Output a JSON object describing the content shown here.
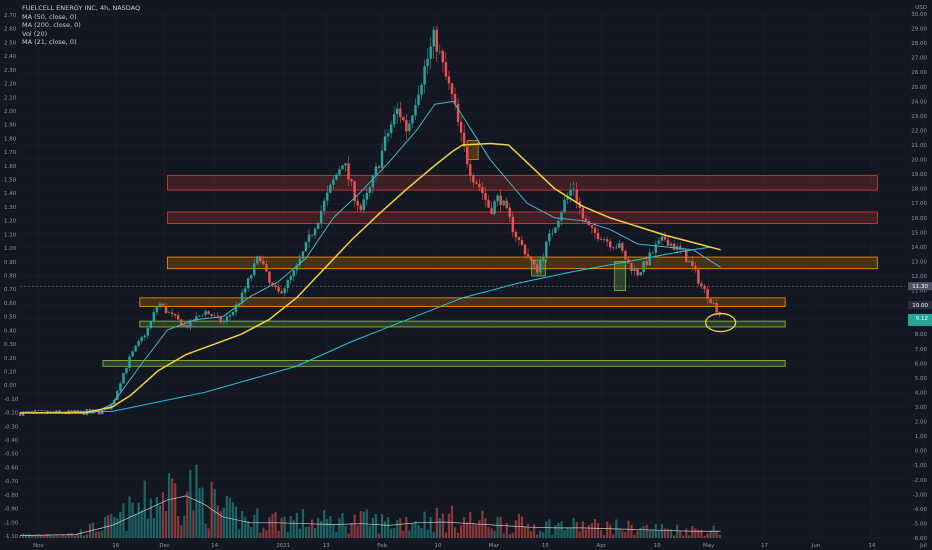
{
  "legend": {
    "title": "FUELCELL ENERGY INC, 4h, NASDAQ",
    "lines": [
      "MA (50, close, 0)",
      "MA (200, close, 0)",
      "Vol (20)",
      "MA (21, close, 0)"
    ]
  },
  "colors": {
    "background": "#131722",
    "grid": "#1f2330",
    "up": "#26a69a",
    "down": "#ef5350",
    "ma50": "#f5d13b",
    "ma200": "#26c6da",
    "ma21": "#4fb3c8",
    "vol_ma": "#c8c8c8",
    "red_zone": "#e53935",
    "orange_zone": "#ff9800",
    "green_zone": "#8bc34a",
    "annotation": "#f5d13b",
    "current_price_tag": "#26a69a"
  },
  "chart_data": {
    "type": "candlestick",
    "symbol": "FUELCELL ENERGY INC",
    "interval": "4h",
    "exchange": "NASDAQ",
    "currency_label": "USD",
    "x_ticks": [
      "Nov",
      "16",
      "Dec",
      "14",
      "2021",
      "13",
      "Feb",
      "10",
      "Mar",
      "15",
      "Apr",
      "19",
      "May",
      "17",
      "Jun",
      "14",
      "Jul"
    ],
    "right_axis": {
      "unit": "USD",
      "ticks": [
        "30.00",
        "29.00",
        "28.00",
        "27.00",
        "26.00",
        "25.00",
        "24.00",
        "23.00",
        "22.00",
        "21.00",
        "20.00",
        "19.00",
        "18.00",
        "17.00",
        "16.00",
        "15.00",
        "14.00",
        "13.00",
        "12.00",
        "11.00",
        "10.00",
        "9.00",
        "8.00",
        "7.00",
        "6.00",
        "5.00",
        "4.00",
        "3.00",
        "2.00",
        "1.00",
        "0.00",
        "-1.00",
        "-2.00",
        "-3.00",
        "-4.00",
        "-5.00",
        "-6.00"
      ],
      "range": [
        -6,
        30
      ],
      "current_price_labels": [
        "11.30",
        "10.00",
        "9.12"
      ]
    },
    "left_axis": {
      "ticks": [
        "2.70",
        "2.60",
        "2.50",
        "2.40",
        "2.30",
        "2.20",
        "2.10",
        "2.00",
        "1.90",
        "1.80",
        "1.70",
        "1.60",
        "1.50",
        "1.40",
        "1.30",
        "1.20",
        "1.10",
        "1.00",
        "0.90",
        "0.80",
        "0.70",
        "0.60",
        "0.50",
        "0.40",
        "0.30",
        "0.20",
        "0.10",
        "0.00",
        "-0.10",
        "-0.20",
        "-0.30",
        "-0.40",
        "-0.50",
        "-0.60",
        "-0.70",
        "-0.80",
        "-0.90",
        "-1.00",
        "-1.10"
      ],
      "range": [
        -1.1,
        2.7
      ]
    },
    "price_path": [
      [
        0,
        2.6
      ],
      [
        6,
        2.6
      ],
      [
        9,
        2.7
      ],
      [
        10,
        3.2
      ],
      [
        11,
        5.0
      ],
      [
        12,
        6.5
      ],
      [
        13,
        7.5
      ],
      [
        14,
        8.5
      ],
      [
        15,
        10.2
      ],
      [
        16,
        9.5
      ],
      [
        17,
        9.0
      ],
      [
        18,
        8.5
      ],
      [
        19,
        9.0
      ],
      [
        20,
        9.6
      ],
      [
        21,
        9.2
      ],
      [
        22,
        8.8
      ],
      [
        23,
        9.5
      ],
      [
        24,
        10.5
      ],
      [
        25,
        12.0
      ],
      [
        26,
        13.5
      ],
      [
        27,
        11.5
      ],
      [
        28,
        10.8
      ],
      [
        29,
        11.5
      ],
      [
        30,
        12.5
      ],
      [
        31,
        14.0
      ],
      [
        32,
        15.5
      ],
      [
        33,
        17.0
      ],
      [
        34,
        18.5
      ],
      [
        35,
        20.0
      ],
      [
        36,
        18.0
      ],
      [
        37,
        16.5
      ],
      [
        38,
        18.0
      ],
      [
        39,
        20.0
      ],
      [
        40,
        22.0
      ],
      [
        41,
        23.5
      ],
      [
        42,
        22.0
      ],
      [
        43,
        24.5
      ],
      [
        44,
        26.5
      ],
      [
        45,
        28.5
      ],
      [
        46,
        26.0
      ],
      [
        47,
        24.0
      ],
      [
        48,
        21.0
      ],
      [
        49,
        19.0
      ],
      [
        50,
        18.0
      ],
      [
        51,
        16.5
      ],
      [
        52,
        17.5
      ],
      [
        53,
        16.0
      ],
      [
        54,
        14.5
      ],
      [
        55,
        13.5
      ],
      [
        56,
        12.3
      ],
      [
        57,
        14.0
      ],
      [
        58,
        15.5
      ],
      [
        59,
        17.0
      ],
      [
        60,
        18.2
      ],
      [
        61,
        16.0
      ],
      [
        62,
        15.0
      ],
      [
        63,
        14.8
      ],
      [
        64,
        14.3
      ],
      [
        65,
        14.0
      ],
      [
        66,
        12.8
      ],
      [
        67,
        12.2
      ],
      [
        68,
        13.0
      ],
      [
        69,
        14.0
      ],
      [
        70,
        14.6
      ],
      [
        71,
        14.0
      ],
      [
        72,
        13.5
      ],
      [
        73,
        12.5
      ],
      [
        74,
        11.2
      ],
      [
        75,
        10.3
      ],
      [
        76,
        9.3
      ]
    ],
    "ma50_path": [
      [
        0,
        2.6
      ],
      [
        7,
        2.6
      ],
      [
        10,
        3.0
      ],
      [
        12,
        3.8
      ],
      [
        15,
        5.5
      ],
      [
        18,
        6.6
      ],
      [
        21,
        7.3
      ],
      [
        24,
        8.0
      ],
      [
        27,
        9.0
      ],
      [
        30,
        10.5
      ],
      [
        33,
        12.5
      ],
      [
        36,
        14.5
      ],
      [
        39,
        16.3
      ],
      [
        42,
        18.0
      ],
      [
        45,
        19.6
      ],
      [
        47,
        20.6
      ],
      [
        48,
        21.0
      ],
      [
        51,
        21.1
      ],
      [
        53,
        21.0
      ],
      [
        55,
        19.8
      ],
      [
        58,
        18.0
      ],
      [
        61,
        16.8
      ],
      [
        64,
        16.0
      ],
      [
        67,
        15.4
      ],
      [
        70,
        14.8
      ],
      [
        73,
        14.3
      ],
      [
        76,
        13.8
      ]
    ],
    "ma200_path": [
      [
        0,
        2.6
      ],
      [
        10,
        2.7
      ],
      [
        20,
        4.0
      ],
      [
        30,
        5.8
      ],
      [
        36,
        7.5
      ],
      [
        42,
        9.0
      ],
      [
        48,
        10.5
      ],
      [
        54,
        11.5
      ],
      [
        60,
        12.3
      ],
      [
        66,
        13.0
      ],
      [
        71,
        13.6
      ],
      [
        75,
        14.0
      ]
    ],
    "ma21_path": [
      [
        0,
        2.6
      ],
      [
        8,
        2.6
      ],
      [
        10,
        3.2
      ],
      [
        13,
        5.8
      ],
      [
        16,
        8.3
      ],
      [
        19,
        9.0
      ],
      [
        22,
        9.2
      ],
      [
        25,
        10.6
      ],
      [
        28,
        11.6
      ],
      [
        31,
        13.2
      ],
      [
        34,
        16.0
      ],
      [
        37,
        17.8
      ],
      [
        40,
        19.8
      ],
      [
        43,
        22.0
      ],
      [
        45,
        23.8
      ],
      [
        47,
        24.0
      ],
      [
        49,
        22.0
      ],
      [
        51,
        20.0
      ],
      [
        53,
        18.5
      ],
      [
        55,
        17.0
      ],
      [
        58,
        16.0
      ],
      [
        61,
        15.8
      ],
      [
        64,
        15.2
      ],
      [
        67,
        14.2
      ],
      [
        70,
        14.0
      ],
      [
        73,
        13.8
      ],
      [
        76,
        12.6
      ]
    ],
    "zones": [
      {
        "color": "red",
        "low": 17.9,
        "high": 18.9,
        "start": 16,
        "end": 93
      },
      {
        "color": "red",
        "low": 15.6,
        "high": 16.4,
        "start": 16,
        "end": 93
      },
      {
        "color": "orange",
        "low": 12.5,
        "high": 13.3,
        "start": 16,
        "end": 93
      },
      {
        "color": "orange",
        "low": 9.9,
        "high": 10.5,
        "start": 13,
        "end": 83
      },
      {
        "color": "green",
        "low": 8.5,
        "high": 8.9,
        "start": 13,
        "end": 83
      },
      {
        "color": "green",
        "low": 5.8,
        "high": 6.2,
        "start": 9,
        "end": 83
      }
    ],
    "small_boxes": [
      {
        "color": "orange",
        "x0": 48.5,
        "x1": 49.7,
        "low": 20.0,
        "high": 21.3
      },
      {
        "color": "green",
        "x0": 55.5,
        "x1": 57.0,
        "low": 12.0,
        "high": 13.1
      },
      {
        "color": "green",
        "x0": 64.5,
        "x1": 65.7,
        "low": 11.0,
        "high": 13.0
      }
    ],
    "annotation_circle": {
      "x": 76,
      "y": 8.8
    },
    "current_price": 11.3,
    "volume_ma": [
      [
        0,
        0.3
      ],
      [
        6,
        0.4
      ],
      [
        10,
        1.5
      ],
      [
        13,
        3.0
      ],
      [
        16,
        4.5
      ],
      [
        18,
        5.0
      ],
      [
        20,
        4.0
      ],
      [
        22,
        2.5
      ],
      [
        25,
        1.8
      ],
      [
        28,
        1.8
      ],
      [
        31,
        1.7
      ],
      [
        34,
        1.6
      ],
      [
        37,
        1.7
      ],
      [
        40,
        1.5
      ],
      [
        43,
        1.8
      ],
      [
        46,
        1.9
      ],
      [
        49,
        1.7
      ],
      [
        52,
        1.5
      ],
      [
        55,
        1.3
      ],
      [
        58,
        1.2
      ],
      [
        61,
        1.2
      ],
      [
        64,
        1.1
      ],
      [
        67,
        1.0
      ],
      [
        70,
        0.9
      ],
      [
        73,
        0.8
      ],
      [
        76,
        0.8
      ]
    ]
  }
}
